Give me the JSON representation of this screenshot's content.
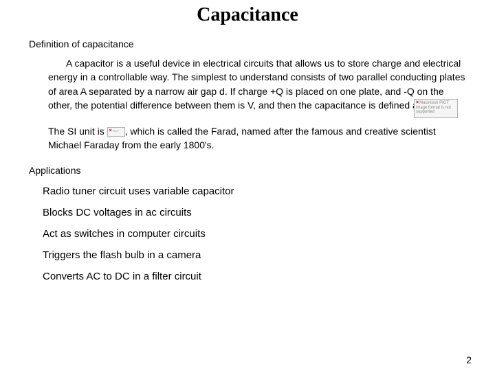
{
  "title": "Capacitance",
  "section1": "Definition of capacitance",
  "para1": "A  capacitor is a useful device in electrical circuits that allows us to store charge and electrical energy in a controllable way. The simplest to understand consists of two parallel conducting plates of area A separated by a narrow air gap d. If charge +Q is placed on one plate, and -Q on the other, the potential difference between them is V, and then the capacitance is defined as",
  "para2a": "The SI unit is ",
  "para2b": ", which is called the Farad, named after the famous and creative scientist Michael Faraday from the early 1800's.",
  "section2": "Applications",
  "apps": [
    "Radio tuner circuit uses variable capacitor",
    "Blocks DC voltages in ac circuits",
    "Act as switches in computer circuits",
    "Triggers the flash bulb in a camera",
    "Converts AC to DC in a filter circuit"
  ],
  "pageNumber": "2",
  "brokenImgLarge": "Macintosh PICT image format is not supported",
  "brokenImgSmall": "PICT"
}
